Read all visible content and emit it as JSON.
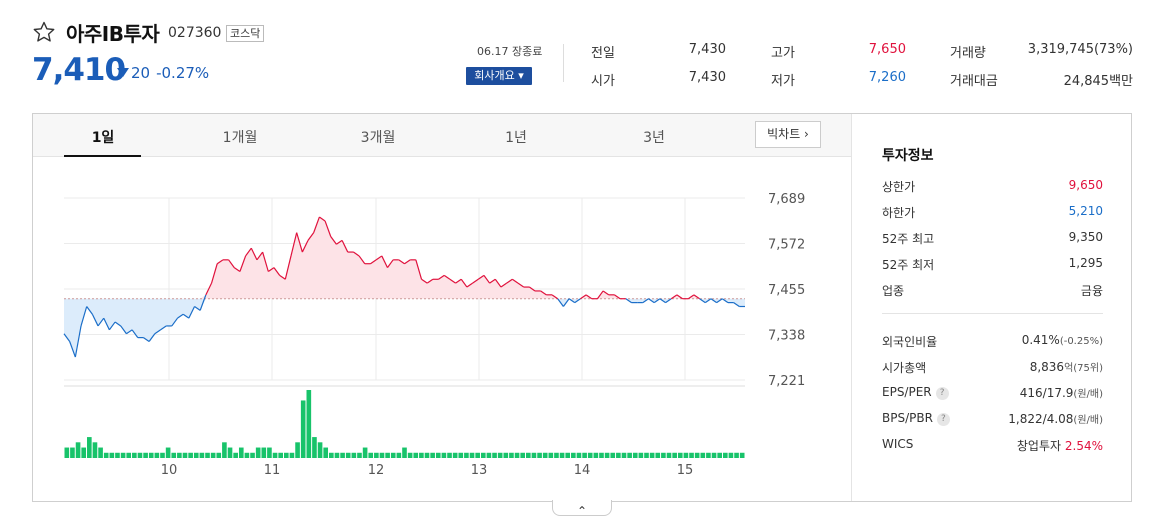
{
  "header": {
    "name": "아주IB투자",
    "code": "027360",
    "market": "코스닥",
    "price": "7,410",
    "change": "20",
    "change_pct": "-0.27%",
    "close_label": "06.17 장종료",
    "company_button": "회사개요 ▾"
  },
  "stats": {
    "prev_label": "전일",
    "prev_value": "7,430",
    "open_label": "시가",
    "open_value": "7,430",
    "high_label": "고가",
    "high_value": "7,650",
    "low_label": "저가",
    "low_value": "7,260",
    "volume_label": "거래량",
    "volume_value": "3,319,745(73%)",
    "amount_label": "거래대금",
    "amount_value": "24,845백만"
  },
  "tabs": [
    "1일",
    "1개월",
    "3개월",
    "1년",
    "3년"
  ],
  "bigchart_label": "빅차트 ›",
  "side": {
    "title": "투자정보",
    "rows1": [
      {
        "k": "상한가",
        "v": "9,650",
        "color": "#e0123d"
      },
      {
        "k": "하한가",
        "v": "5,210",
        "color": "#1b6ec8"
      },
      {
        "k": "52주 최고",
        "v": "9,350",
        "color": "#333333"
      },
      {
        "k": "52주 최저",
        "v": "1,295",
        "color": "#333333"
      },
      {
        "k": "업종",
        "v": "금융",
        "color": "#333333"
      }
    ],
    "foreign_label": "외국인비율",
    "foreign_value": "0.41%",
    "foreign_sub": "(-0.25%)",
    "mcap_label": "시가총액",
    "mcap_value": "8,836",
    "mcap_sub": "억(75위)",
    "eps_label": "EPS/PER",
    "eps_value": "416/17.9",
    "eps_sub": "(원/배)",
    "bps_label": "BPS/PBR",
    "bps_value": "1,822/4.08",
    "bps_sub": "(원/배)",
    "wics_label": "WICS",
    "wics_value": "창업투자",
    "wics_pct": "2.54%",
    "q_glyph": "?"
  },
  "collapse_glyph": "⌃",
  "colors": {
    "up": "#e0123d",
    "down": "#1b6ec8",
    "volume": "#18c36a",
    "up_fill": "#fde3e7",
    "down_fill": "#dcecfb"
  },
  "chart_data": {
    "type": "line",
    "prev_close": 7430,
    "y_ticks": [
      "7,689",
      "7,572",
      "7,455",
      "7,338",
      "7,221"
    ],
    "ylim": [
      7221,
      7689
    ],
    "x_ticks": [
      "10",
      "11",
      "12",
      "13",
      "14",
      "15"
    ],
    "price": [
      7340,
      7320,
      7280,
      7360,
      7410,
      7390,
      7360,
      7380,
      7350,
      7370,
      7360,
      7340,
      7350,
      7330,
      7330,
      7320,
      7340,
      7350,
      7360,
      7360,
      7380,
      7390,
      7380,
      7410,
      7400,
      7440,
      7470,
      7520,
      7530,
      7530,
      7510,
      7500,
      7540,
      7560,
      7530,
      7550,
      7500,
      7510,
      7490,
      7480,
      7540,
      7600,
      7550,
      7580,
      7600,
      7640,
      7630,
      7590,
      7570,
      7580,
      7550,
      7550,
      7540,
      7520,
      7520,
      7530,
      7540,
      7510,
      7530,
      7530,
      7520,
      7530,
      7530,
      7480,
      7470,
      7480,
      7480,
      7490,
      7480,
      7470,
      7480,
      7460,
      7470,
      7480,
      7490,
      7470,
      7480,
      7460,
      7470,
      7480,
      7470,
      7460,
      7460,
      7450,
      7450,
      7440,
      7440,
      7430,
      7410,
      7430,
      7420,
      7430,
      7440,
      7430,
      7430,
      7450,
      7440,
      7440,
      7430,
      7430,
      7420,
      7420,
      7420,
      7430,
      7420,
      7430,
      7420,
      7430,
      7440,
      7430,
      7430,
      7440,
      7430,
      7420,
      7430,
      7420,
      7430,
      7420,
      7420,
      7410,
      7410
    ],
    "volume": [
      2,
      2,
      3,
      2,
      4,
      3,
      2,
      1,
      1,
      1,
      1,
      1,
      1,
      1,
      1,
      1,
      1,
      1,
      2,
      1,
      1,
      1,
      1,
      1,
      1,
      1,
      1,
      1,
      3,
      2,
      1,
      2,
      1,
      1,
      2,
      2,
      2,
      1,
      1,
      1,
      1,
      3,
      11,
      13,
      4,
      3,
      2,
      1,
      1,
      1,
      1,
      1,
      1,
      2,
      1,
      1,
      1,
      1,
      1,
      1,
      2,
      1,
      1,
      1,
      1,
      1,
      1,
      1,
      1,
      1,
      1,
      1,
      1,
      1,
      1,
      1,
      1,
      1,
      1,
      1,
      1,
      1,
      1,
      1,
      1,
      1,
      1,
      1,
      1,
      1,
      1,
      1,
      1,
      1,
      1,
      1,
      1,
      1,
      1,
      1,
      1,
      1,
      1,
      1,
      1,
      1,
      1,
      1,
      1,
      1,
      1,
      1,
      1,
      1,
      1,
      1,
      1,
      1,
      1,
      1,
      1
    ]
  }
}
